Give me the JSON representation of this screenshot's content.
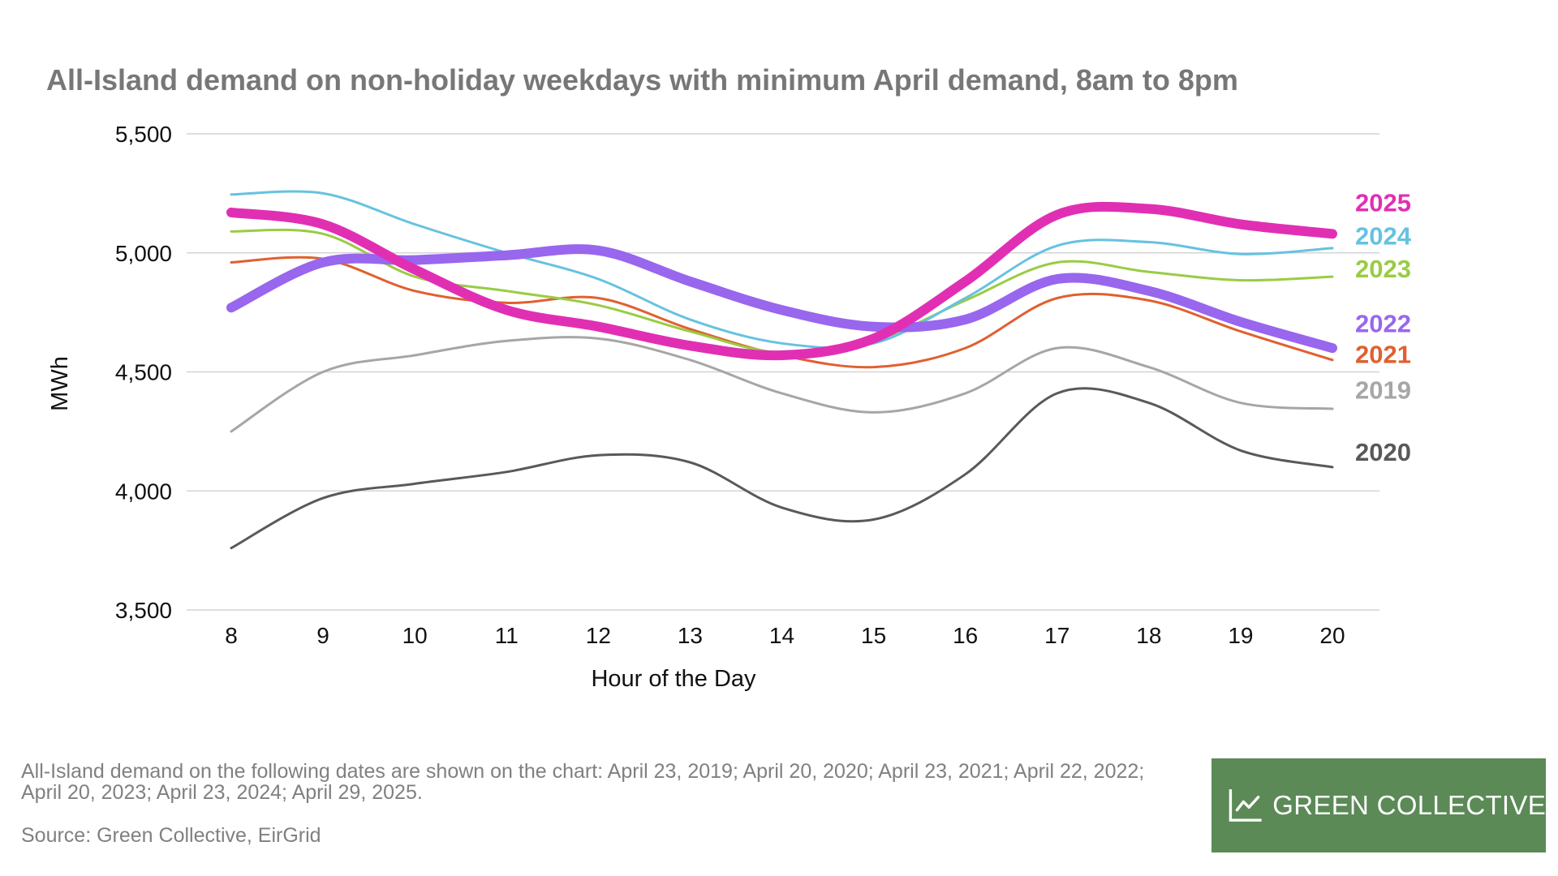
{
  "footer": {
    "note": "All-Island demand on the following dates are shown on the chart: April 23, 2019; April 20, 2020; April 23, 2021; April 22, 2022; April 20, 2023; April 23, 2024; April 29, 2025.",
    "source": "Source: Green Collective, EirGrid"
  },
  "logo": {
    "text": "GREEN COLLECTIVE",
    "icon": "line-chart-icon",
    "background": "#5b8a56"
  },
  "chart_data": {
    "type": "line",
    "title": "All-Island demand on non-holiday weekdays with minimum April demand, 8am to 8pm",
    "xlabel": "Hour of the Day",
    "ylabel": "MWh",
    "x": [
      8,
      9,
      10,
      11,
      12,
      13,
      14,
      15,
      16,
      17,
      18,
      19,
      20
    ],
    "xlim": [
      8,
      20
    ],
    "ylim": [
      3500,
      5500
    ],
    "yticks": [
      3500,
      4000,
      4500,
      5000,
      5500
    ],
    "ytick_labels": [
      "3,500",
      "4,000",
      "4,500",
      "5,000",
      "5,500"
    ],
    "grid": true,
    "legend": "right",
    "series": [
      {
        "name": "2019",
        "color": "#a6a6a6",
        "width": 3,
        "values": [
          4250,
          4500,
          4570,
          4630,
          4640,
          4550,
          4410,
          4330,
          4410,
          4600,
          4520,
          4370,
          4345
        ]
      },
      {
        "name": "2020",
        "color": "#595959",
        "width": 3,
        "values": [
          3760,
          3970,
          4030,
          4080,
          4150,
          4120,
          3930,
          3880,
          4070,
          4410,
          4370,
          4170,
          4100
        ]
      },
      {
        "name": "2021",
        "color": "#e06030",
        "width": 3,
        "values": [
          4960,
          4975,
          4840,
          4790,
          4810,
          4680,
          4570,
          4520,
          4600,
          4810,
          4800,
          4670,
          4550
        ]
      },
      {
        "name": "2022",
        "color": "#9966ee",
        "width": 12,
        "values": [
          4770,
          4960,
          4970,
          4990,
          5010,
          4880,
          4760,
          4690,
          4720,
          4890,
          4840,
          4710,
          4600
        ]
      },
      {
        "name": "2023",
        "color": "#99cc44",
        "width": 3,
        "values": [
          5090,
          5080,
          4900,
          4840,
          4780,
          4670,
          4580,
          4630,
          4800,
          4960,
          4920,
          4885,
          4900
        ]
      },
      {
        "name": "2024",
        "color": "#66c2e0",
        "width": 3,
        "values": [
          5245,
          5250,
          5120,
          5000,
          4890,
          4720,
          4620,
          4620,
          4810,
          5030,
          5045,
          4995,
          5020
        ]
      },
      {
        "name": "2025",
        "color": "#e12fb4",
        "width": 12,
        "values": [
          5170,
          5120,
          4930,
          4760,
          4690,
          4610,
          4570,
          4640,
          4880,
          5160,
          5185,
          5120,
          5080
        ]
      }
    ],
    "legend_labels": [
      {
        "name": "2025",
        "value": 5212
      },
      {
        "name": "2024",
        "value": 5072
      },
      {
        "name": "2023",
        "value": 4935
      },
      {
        "name": "2022",
        "value": 4705
      },
      {
        "name": "2021",
        "value": 4575
      },
      {
        "name": "2019",
        "value": 4425
      },
      {
        "name": "2020",
        "value": 4165
      }
    ]
  }
}
